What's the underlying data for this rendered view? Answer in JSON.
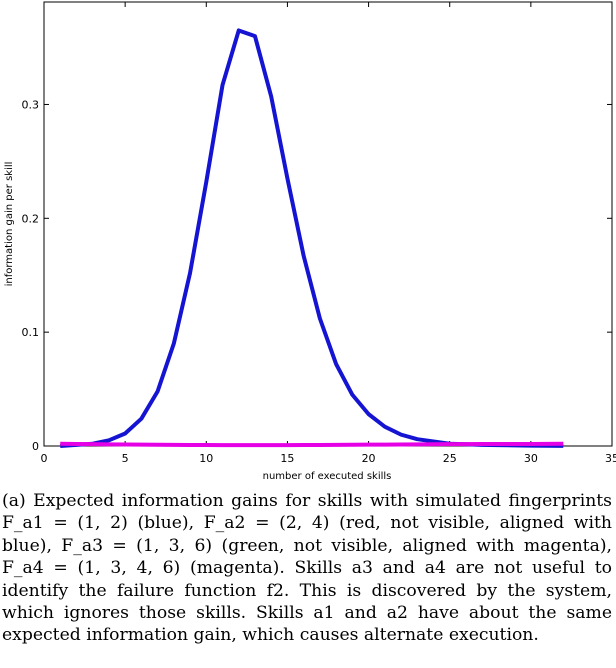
{
  "chart_data": {
    "type": "line",
    "xlabel": "number of executed skills",
    "ylabel": "information gain per skill",
    "xlim": [
      0,
      35
    ],
    "ylim": [
      0,
      0.39
    ],
    "xticks": [
      0,
      5,
      10,
      15,
      20,
      25,
      30,
      35
    ],
    "yticks": [
      0,
      0.1,
      0.2,
      0.3
    ],
    "xtick_labels": [
      "0",
      "5",
      "10",
      "15",
      "20",
      "25",
      "30",
      "35"
    ],
    "ytick_labels": [
      "0",
      "0.1",
      "0.2",
      "0.3"
    ],
    "grid": false,
    "series": [
      {
        "color": "#1414d2",
        "x": [
          1,
          2,
          3,
          4,
          5,
          6,
          7,
          8,
          9,
          10,
          11,
          12,
          13,
          14,
          15,
          16,
          17,
          18,
          19,
          20,
          21,
          22,
          23,
          24,
          25,
          26,
          27,
          28,
          29,
          30,
          31,
          32
        ],
        "y": [
          0.0,
          0.001,
          0.002,
          0.005,
          0.011,
          0.024,
          0.048,
          0.09,
          0.152,
          0.232,
          0.317,
          0.365,
          0.36,
          0.307,
          0.235,
          0.167,
          0.112,
          0.072,
          0.045,
          0.028,
          0.017,
          0.01,
          0.006,
          0.004,
          0.002,
          0.0015,
          0.001,
          0.0008,
          0.0005,
          0.0003,
          0.0002,
          0.0001
        ]
      },
      {
        "color": "#e600e6",
        "x": [
          1,
          2,
          3,
          4,
          5,
          6,
          7,
          8,
          9,
          10,
          11,
          12,
          13,
          14,
          15,
          16,
          17,
          18,
          19,
          20,
          21,
          22,
          23,
          24,
          25,
          26,
          27,
          28,
          29,
          30,
          31,
          32
        ],
        "y": [
          0.002,
          0.0018,
          0.0016,
          0.0014,
          0.0013,
          0.0012,
          0.0011,
          0.001,
          0.0009,
          0.0009,
          0.0008,
          0.0008,
          0.0008,
          0.0008,
          0.0008,
          0.0009,
          0.0009,
          0.001,
          0.0011,
          0.0012,
          0.0012,
          0.0013,
          0.0014,
          0.0015,
          0.0016,
          0.0016,
          0.0017,
          0.0017,
          0.0018,
          0.0018,
          0.0019,
          0.002
        ]
      }
    ]
  },
  "caption": {
    "lines": [
      "(a) Expected information gains for skills with simulated fingerprints",
      "F_a1 = (1, 2) (blue), F_a2 = (2, 4) (red, not visible, aligned with",
      "blue), F_a3 = (1, 3, 6) (green, not visible, aligned with magenta),",
      "F_a4 = (1, 3, 4, 6) (magenta). Skills a3 and a4 are not useful to",
      "identify the failure function f2. This is discovered by the system,",
      "which ignores those skills. Skills a1 and a2 have about the same",
      "expected information gain, which causes alternate execution."
    ]
  }
}
